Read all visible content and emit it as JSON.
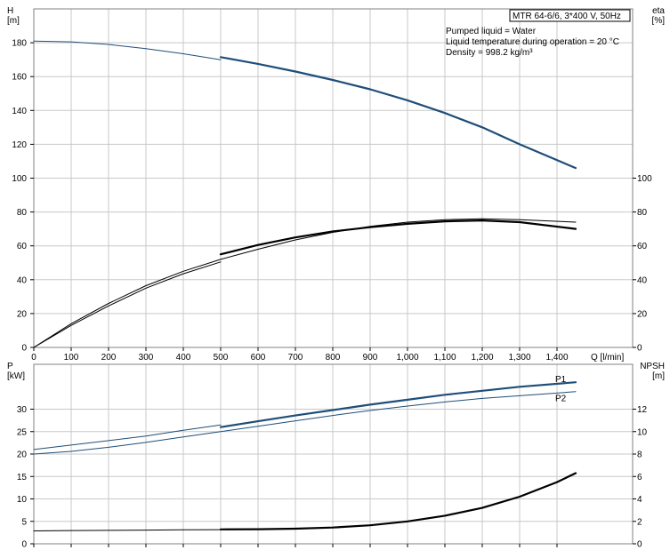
{
  "chart_data": [
    {
      "type": "line",
      "panel": "upper",
      "title_box": "MTR 64-6/6, 3*400 V, 50Hz",
      "info": [
        "Pumped liquid = Water",
        "Liquid temperature during operation = 20 °C",
        "Density = 998.2 kg/m³"
      ],
      "left_axis": {
        "label_lines": [
          "H",
          "[m]"
        ],
        "ylim": [
          0,
          200
        ],
        "ticks": [
          0,
          20,
          40,
          60,
          80,
          100,
          120,
          140,
          160,
          180
        ]
      },
      "right_axis": {
        "label_lines": [
          "eta",
          "[%]"
        ],
        "ylim": [
          0,
          200
        ],
        "ticks": [
          0,
          20,
          40,
          60,
          80,
          100
        ]
      },
      "xlabel": "Q [l/min]",
      "xlim": [
        0,
        1600
      ],
      "x_ticks": [
        0,
        100,
        200,
        300,
        400,
        500,
        600,
        700,
        800,
        900,
        1000,
        1100,
        1200,
        1300,
        1400
      ],
      "x_tick_labels": [
        "0",
        "100",
        "200",
        "300",
        "400",
        "500",
        "600",
        "700",
        "800",
        "900",
        "1,000",
        "1,100",
        "1,200",
        "1,300",
        "1,400"
      ],
      "grid": true,
      "series": [
        {
          "axis": "left",
          "color": "#1f4e79",
          "width": 1,
          "x": [
            0,
            100,
            200,
            300,
            400,
            500
          ],
          "y": [
            181,
            180.5,
            179,
            176.5,
            173.5,
            170
          ]
        },
        {
          "axis": "left",
          "color": "#1f4e79",
          "width": 2.2,
          "x": [
            500,
            600,
            700,
            800,
            900,
            1000,
            1100,
            1200,
            1300,
            1450
          ],
          "y": [
            171.5,
            167.5,
            163,
            158,
            152.5,
            146,
            138.5,
            130,
            120,
            106
          ]
        },
        {
          "axis": "right",
          "color": "#000000",
          "width": 1,
          "x": [
            0,
            100,
            200,
            300,
            400,
            500,
            600,
            700,
            800,
            900,
            1000,
            1100,
            1200,
            1300,
            1450
          ],
          "y": [
            0,
            14,
            26,
            36.5,
            45,
            52,
            58,
            63.5,
            68,
            71.5,
            74,
            75.5,
            76,
            75.5,
            74
          ]
        },
        {
          "axis": "right",
          "color": "#000000",
          "width": 1,
          "x": [
            0,
            100,
            200,
            300,
            400,
            500
          ],
          "y": [
            0,
            13,
            24.5,
            35,
            43.5,
            50.5
          ]
        },
        {
          "axis": "right",
          "color": "#000000",
          "width": 2.2,
          "x": [
            500,
            600,
            700,
            800,
            900,
            1000,
            1100,
            1200,
            1300,
            1450
          ],
          "y": [
            55,
            60.5,
            65,
            68.5,
            71,
            73,
            74.5,
            75,
            74,
            70
          ]
        }
      ]
    },
    {
      "type": "line",
      "panel": "lower",
      "left_axis": {
        "label_lines": [
          "P",
          "[kW]"
        ],
        "ylim": [
          0,
          40
        ],
        "ticks": [
          0,
          5,
          10,
          15,
          20,
          25,
          30
        ]
      },
      "right_axis": {
        "label_lines": [
          "NPSH",
          "[m]"
        ],
        "ylim": [
          0,
          16
        ],
        "ticks": [
          0,
          2,
          4,
          6,
          8,
          10,
          12
        ]
      },
      "xlim": [
        0,
        1600
      ],
      "x_ticks": [
        0,
        100,
        200,
        300,
        400,
        500,
        600,
        700,
        800,
        900,
        1000,
        1100,
        1200,
        1300,
        1400
      ],
      "grid": true,
      "series": [
        {
          "name": "P1",
          "axis": "left",
          "color": "#1f4e79",
          "width": 1,
          "x": [
            0,
            100,
            200,
            300,
            400,
            500
          ],
          "y": [
            21,
            22,
            23,
            24,
            25.3,
            26.5
          ]
        },
        {
          "name": "P1",
          "axis": "left",
          "color": "#1f4e79",
          "width": 2.2,
          "x": [
            500,
            600,
            700,
            800,
            900,
            1000,
            1100,
            1200,
            1300,
            1450
          ],
          "y": [
            26,
            27.3,
            28.6,
            29.8,
            31,
            32.1,
            33.2,
            34.1,
            35,
            36
          ]
        },
        {
          "name": "P2",
          "axis": "left",
          "color": "#1f4e79",
          "width": 1,
          "x": [
            0,
            100,
            200,
            300,
            400,
            500,
            600,
            700,
            800,
            900,
            1000,
            1100,
            1200,
            1300,
            1450
          ],
          "y": [
            20,
            20.6,
            21.5,
            22.6,
            23.8,
            25,
            26.2,
            27.4,
            28.6,
            29.7,
            30.7,
            31.6,
            32.4,
            33,
            33.9
          ]
        },
        {
          "axis": "right",
          "color": "#000000",
          "width": 1,
          "x": [
            0,
            100,
            200,
            300,
            400,
            500
          ],
          "y": [
            1.15,
            1.18,
            1.2,
            1.22,
            1.24,
            1.26
          ]
        },
        {
          "axis": "right",
          "color": "#000000",
          "width": 2.2,
          "x": [
            500,
            600,
            700,
            800,
            900,
            1000,
            1100,
            1200,
            1300,
            1400,
            1450
          ],
          "y": [
            1.28,
            1.3,
            1.35,
            1.45,
            1.65,
            2.0,
            2.5,
            3.2,
            4.2,
            5.5,
            6.3
          ]
        }
      ],
      "series_labels": [
        {
          "text": "P1",
          "x": 1400,
          "y": 36.7
        },
        {
          "text": "P2",
          "x": 1400,
          "y": 32.5
        }
      ]
    }
  ]
}
